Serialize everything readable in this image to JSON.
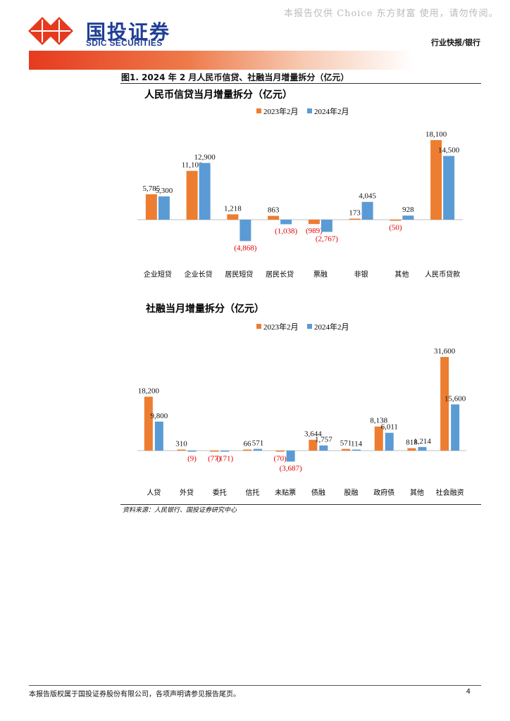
{
  "header": {
    "watermark": "本报告仅供 Choice 东方财富 使用，请勿传阅。",
    "logo_cn": "国投证券",
    "logo_en": "SDIC SECURITIES",
    "report_type": "行业快报/银行",
    "brand_color": "#e63a1f",
    "logo_color": "#1f3f95"
  },
  "figure": {
    "title": "图1. 2024 年 2 月人民币信贷、社融当月增量拆分（亿元）",
    "source": "资料来源：人民银行、国投证券研究中心"
  },
  "footer": {
    "disclaimer": "本报告版权属于国投证券股份有限公司，各项声明请参见报告尾页。",
    "page": "4"
  },
  "colors": {
    "series_2023": "#ed7d31",
    "series_2024": "#5b9bd5",
    "negative_label": "#e00000"
  },
  "chart_data": [
    {
      "type": "bar",
      "title": "人民币信贷当月增量拆分（亿元）",
      "legend_position": "top",
      "grid": false,
      "categories": [
        "企业短贷",
        "企业长贷",
        "居民短贷",
        "居民长贷",
        "票融",
        "非银",
        "其他",
        "人民币贷款"
      ],
      "series": [
        {
          "name": "2023年2月",
          "values": [
            5785,
            11100,
            1218,
            863,
            -989,
            173,
            -50,
            18100
          ],
          "labels": [
            "5,785",
            "11,100",
            "1,218",
            "863",
            "(989)",
            "173",
            "(50)",
            "18,100"
          ]
        },
        {
          "name": "2024年2月",
          "values": [
            5300,
            12900,
            -4868,
            -1038,
            -2767,
            4045,
            928,
            14500
          ],
          "labels": [
            "5,300",
            "12,900",
            "(4,868)",
            "(1,038)",
            "(2,767)",
            "4,045",
            "928",
            "14,500"
          ]
        }
      ]
    },
    {
      "type": "bar",
      "title": "社融当月增量拆分（亿元）",
      "legend_position": "top",
      "grid": false,
      "categories": [
        "人贷",
        "外贷",
        "委托",
        "信托",
        "未贴票",
        "债融",
        "股融",
        "政府债",
        "其他",
        "社会融资"
      ],
      "series": [
        {
          "name": "2023年2月",
          "values": [
            18200,
            310,
            -77,
            66,
            -70,
            3644,
            571,
            8138,
            818,
            31600
          ],
          "labels": [
            "18,200",
            "310",
            "(77)",
            "66",
            "(70)",
            "3,644",
            "571",
            "8,138",
            "818",
            "31,600"
          ]
        },
        {
          "name": "2024年2月",
          "values": [
            9800,
            -9,
            -171,
            571,
            -3687,
            1757,
            114,
            6011,
            1214,
            15600
          ],
          "labels": [
            "9,800",
            "(9)",
            "(171)",
            "571",
            "(3,687)",
            "1,757",
            "114",
            "6,011",
            "1,214",
            "15,600"
          ]
        }
      ]
    }
  ]
}
